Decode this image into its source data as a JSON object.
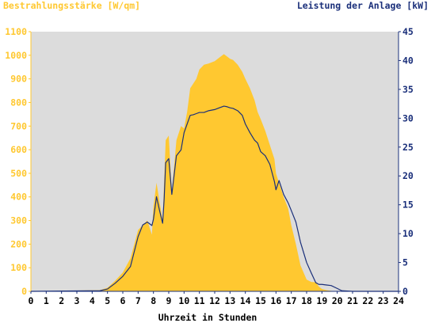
{
  "header": {
    "left_title": "Bestrahlungsstärke [W/qm]",
    "right_title": "Leistung der Anlage [kW]"
  },
  "colors": {
    "left_axis": "#ffc830",
    "right_axis": "#1a2f7a",
    "area_fill": "#ffc830",
    "plot_bg": "#dcdcdc",
    "line": "#1a2f7a"
  },
  "chart_data": {
    "type": "area",
    "xlabel": "Uhrzeit in Stunden",
    "xlim": [
      0,
      24
    ],
    "x_ticks": [
      "0",
      "1",
      "2",
      "3",
      "4",
      "5",
      "6",
      "7",
      "8",
      "9",
      "10",
      "11",
      "12",
      "13",
      "14",
      "15",
      "16",
      "17",
      "18",
      "19",
      "20",
      "21",
      "22",
      "23",
      "24"
    ],
    "left_axis": {
      "label": "Bestrahlungsstärke [W/qm]",
      "ylim": [
        0,
        1100
      ],
      "ticks": [
        "0",
        "100",
        "200",
        "300",
        "400",
        "500",
        "600",
        "700",
        "800",
        "900",
        "1000",
        "1100"
      ]
    },
    "right_axis": {
      "label": "Leistung der Anlage [kW]",
      "ylim": [
        0,
        45
      ],
      "ticks": [
        "0",
        "5",
        "10",
        "15",
        "20",
        "25",
        "30",
        "35",
        "40",
        "45"
      ]
    },
    "series": [
      {
        "name": "Bestrahlungsstärke [W/qm]",
        "type": "area",
        "axis": "left",
        "x": [
          0,
          4.5,
          5,
          5.5,
          6,
          6.5,
          7,
          7.3,
          7.6,
          7.9,
          8,
          8.2,
          8.4,
          8.6,
          8.7,
          8.8,
          9,
          9.2,
          9.5,
          9.8,
          10,
          10.2,
          10.4,
          10.6,
          10.8,
          11,
          11.3,
          11.6,
          12,
          12.3,
          12.6,
          12.8,
          13,
          13.2,
          13.5,
          13.8,
          14,
          14.3,
          14.6,
          14.8,
          15,
          15.3,
          15.6,
          15.9,
          16,
          16.2,
          16.5,
          16.8,
          17,
          17.3,
          17.6,
          18,
          18.3,
          18.6,
          18.8,
          19,
          19.3,
          19.6,
          20,
          20.3,
          21,
          24
        ],
        "y": [
          0,
          5,
          15,
          45,
          80,
          140,
          260,
          280,
          300,
          240,
          360,
          460,
          380,
          300,
          470,
          640,
          660,
          420,
          640,
          700,
          690,
          760,
          860,
          880,
          900,
          940,
          960,
          965,
          975,
          990,
          1005,
          995,
          985,
          980,
          960,
          930,
          900,
          860,
          810,
          760,
          730,
          680,
          620,
          560,
          500,
          460,
          400,
          350,
          280,
          200,
          110,
          50,
          40,
          38,
          20,
          10,
          5,
          2,
          0,
          0,
          0,
          0
        ]
      },
      {
        "name": "Leistung der Anlage [kW]",
        "type": "line",
        "axis": "right",
        "x": [
          0,
          4.5,
          5,
          5.5,
          6,
          6.5,
          7,
          7.3,
          7.6,
          7.9,
          8,
          8.2,
          8.4,
          8.6,
          8.7,
          8.8,
          9,
          9.2,
          9.5,
          9.8,
          10,
          10.2,
          10.4,
          10.6,
          10.8,
          11,
          11.3,
          11.6,
          12,
          12.3,
          12.6,
          12.8,
          13,
          13.2,
          13.5,
          13.8,
          14,
          14.3,
          14.6,
          14.8,
          15,
          15.3,
          15.6,
          15.9,
          16,
          16.2,
          16.5,
          16.8,
          17,
          17.3,
          17.6,
          18,
          18.3,
          18.6,
          18.8,
          19,
          19.3,
          19.6,
          20,
          20.3,
          21,
          24
        ],
        "y": [
          0,
          0.1,
          0.4,
          1.4,
          2.6,
          4.3,
          9.5,
          11.5,
          12,
          11.4,
          12.5,
          16.4,
          14,
          11.8,
          16,
          22.3,
          23,
          16.8,
          23.5,
          24.5,
          27.5,
          29,
          30.5,
          30.6,
          30.8,
          31,
          31,
          31.3,
          31.5,
          31.8,
          32.1,
          32,
          31.8,
          31.7,
          31.3,
          30.5,
          29,
          27.5,
          26.2,
          25.7,
          24.2,
          23.5,
          22,
          19,
          17.6,
          19.2,
          16.8,
          15.3,
          14,
          12,
          8.5,
          5,
          3.2,
          1.5,
          1.2,
          1.2,
          1.1,
          1,
          0.5,
          0.1,
          0,
          0
        ]
      }
    ]
  }
}
